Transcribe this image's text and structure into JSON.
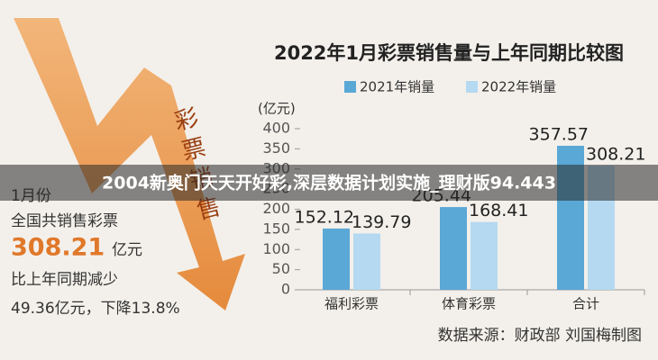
{
  "banner": "2004新奥门天天开好彩,深层数据计划实施_理财版94.443",
  "arrow_text": "彩票销售",
  "left_panel": {
    "month": "1月份",
    "line1": "全国共销售彩票",
    "amount": "308.21",
    "amount_unit": "亿元",
    "line3": "比上年同期减少",
    "line4": "49.36亿元，下降13.8%"
  },
  "chart_data": {
    "type": "bar",
    "title": "2022年1月彩票销售量与上年同期比较图",
    "y_label": "(亿元)",
    "categories": [
      "福利彩票",
      "体育彩票",
      "合计"
    ],
    "series": [
      {
        "name": "2021年销量",
        "color": "#5aa8d6",
        "values": [
          152.12,
          205.44,
          357.57
        ]
      },
      {
        "name": "2022年销量",
        "color": "#b5d9f1",
        "values": [
          139.79,
          168.41,
          308.21
        ]
      }
    ],
    "ylim": [
      0,
      400
    ],
    "yticks": [
      0,
      50,
      100,
      150,
      200,
      250,
      300,
      350,
      400
    ],
    "grid": false,
    "source": "数据来源：财政部  刘国梅制图"
  }
}
